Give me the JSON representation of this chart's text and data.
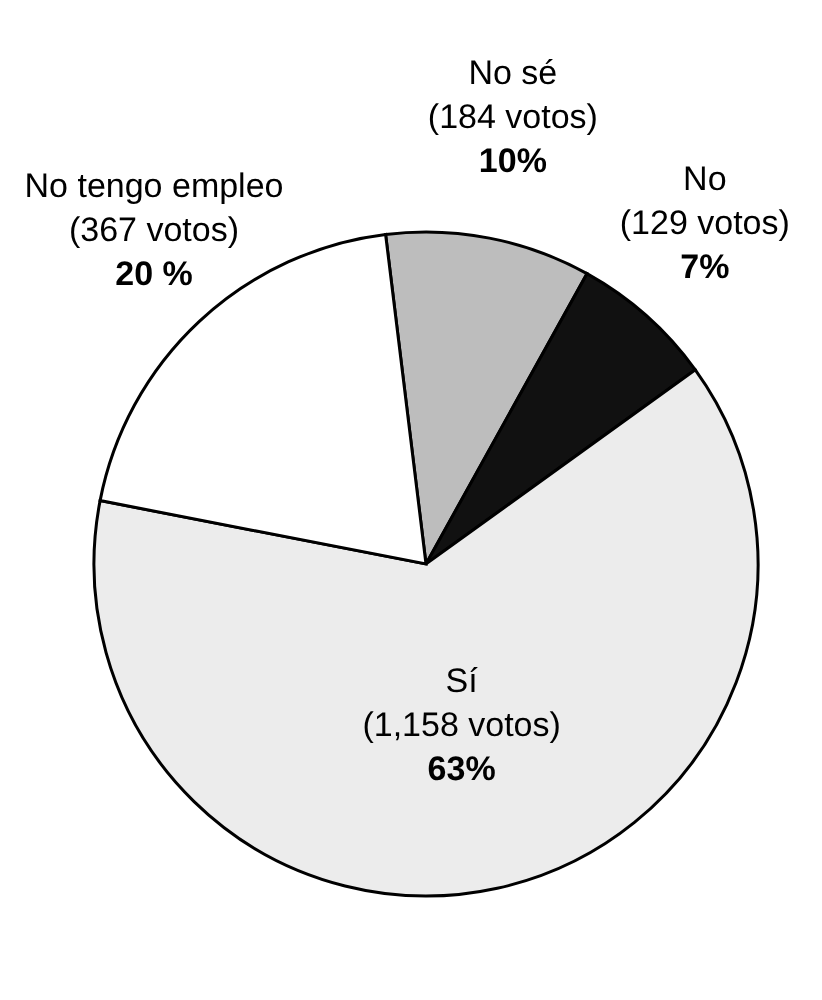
{
  "chart_data": {
    "type": "pie",
    "categories": [
      "No sé (184 votos)",
      "No (129 votos)",
      "Sí (1,158 votos)",
      "No tengo empleo (367 votos)"
    ],
    "values": [
      10,
      7,
      63,
      20
    ],
    "colors": [
      "#bdbdbd",
      "#111111",
      "#ececec",
      "#ffffff"
    ],
    "value_labels": [
      "10%",
      "7%",
      "63%",
      "20 %"
    ]
  }
}
